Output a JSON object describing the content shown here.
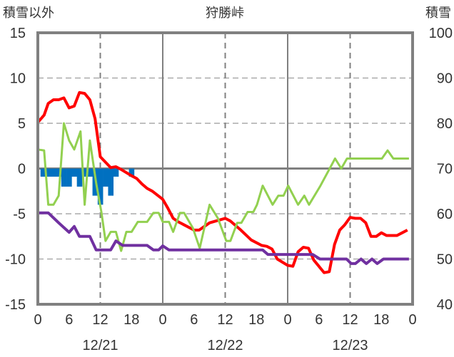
{
  "chart_data": {
    "type": "line",
    "title": "狩勝峠",
    "ylabel_left": "積雪以外",
    "ylabel_right": "積雪",
    "ylim_left": [
      -15,
      15
    ],
    "ylim_right": [
      40,
      100
    ],
    "yticks_left": [
      "15",
      "10",
      "5",
      "0",
      "-5",
      "-10",
      "-15"
    ],
    "yticks_right": [
      "100",
      "90",
      "80",
      "70",
      "60",
      "50",
      "40"
    ],
    "xlim_hours": [
      0,
      72
    ],
    "xticks": [
      "0",
      "6",
      "12",
      "18",
      "0",
      "6",
      "12",
      "18",
      "0",
      "6",
      "12",
      "18",
      "0"
    ],
    "date_labels": [
      "12/21",
      "12/22",
      "12/23"
    ],
    "colors": {
      "red": "#ff0000",
      "green": "#92d050",
      "purple": "#7030a0",
      "blue": "#0070c0",
      "grid": "#808080"
    },
    "series": [
      {
        "name": "red",
        "axis": "left",
        "points": [
          [
            0,
            5.1
          ],
          [
            1.2,
            5.9
          ],
          [
            2,
            7.2
          ],
          [
            3,
            7.6
          ],
          [
            4,
            7.6
          ],
          [
            5,
            7.8
          ],
          [
            6,
            6.7
          ],
          [
            7,
            6.9
          ],
          [
            8,
            8.4
          ],
          [
            9,
            8.3
          ],
          [
            10,
            7.6
          ],
          [
            11,
            5.5
          ],
          [
            12,
            1.3
          ],
          [
            13,
            0.7
          ],
          [
            14,
            0.1
          ],
          [
            15,
            0.2
          ],
          [
            16,
            -0.1
          ],
          [
            18,
            -0.8
          ],
          [
            19,
            -1.1
          ],
          [
            20,
            -1.7
          ],
          [
            21,
            -2.2
          ],
          [
            22,
            -2.5
          ],
          [
            24,
            -3.4
          ],
          [
            25,
            -4.4
          ],
          [
            26,
            -5.5
          ],
          [
            27,
            -5.9
          ],
          [
            28,
            -6.2
          ],
          [
            30,
            -6.8
          ],
          [
            31,
            -6.8
          ],
          [
            33,
            -6.0
          ],
          [
            36,
            -5.5
          ],
          [
            37,
            -5.8
          ],
          [
            39,
            -6.8
          ],
          [
            41,
            -7.9
          ],
          [
            43,
            -8.5
          ],
          [
            44,
            -8.6
          ],
          [
            45,
            -8.9
          ],
          [
            46,
            -10
          ],
          [
            48,
            -10.7
          ],
          [
            49,
            -10.8
          ],
          [
            50,
            -9.2
          ],
          [
            51,
            -8.7
          ],
          [
            52,
            -8.8
          ],
          [
            53,
            -10.1
          ],
          [
            55,
            -11.5
          ],
          [
            56,
            -11.4
          ],
          [
            57,
            -8.4
          ],
          [
            58,
            -6.8
          ],
          [
            59,
            -6.2
          ],
          [
            60,
            -5.4
          ],
          [
            61,
            -5.5
          ],
          [
            62,
            -5.5
          ],
          [
            63,
            -6
          ],
          [
            64,
            -7.5
          ],
          [
            65,
            -7.5
          ],
          [
            66,
            -7.1
          ],
          [
            67,
            -7.4
          ],
          [
            69,
            -7.4
          ],
          [
            70,
            -7.1
          ],
          [
            71,
            -6.8
          ]
        ]
      },
      {
        "name": "green",
        "axis": "left",
        "points": [
          [
            0,
            2.1
          ],
          [
            1.2,
            2
          ],
          [
            2,
            -4
          ],
          [
            3,
            -4
          ],
          [
            4,
            -3
          ],
          [
            5,
            5
          ],
          [
            6,
            3.1
          ],
          [
            7,
            2.1
          ],
          [
            8.2,
            4.1
          ],
          [
            9,
            -4
          ],
          [
            10,
            3.1
          ],
          [
            11.2,
            -1.6
          ],
          [
            12.2,
            -4.8
          ],
          [
            13,
            -8
          ],
          [
            14,
            -7
          ],
          [
            15,
            -7
          ],
          [
            16,
            -9.1
          ],
          [
            17,
            -7
          ],
          [
            18,
            -7
          ],
          [
            19.2,
            -5.9
          ],
          [
            21,
            -5.9
          ],
          [
            22.2,
            -4.9
          ],
          [
            23.2,
            -4.9
          ],
          [
            24,
            -5.9
          ],
          [
            25.2,
            -5.9
          ],
          [
            26,
            -7
          ],
          [
            27.3,
            -4.9
          ],
          [
            28.1,
            -4.9
          ],
          [
            29.8,
            -6.6
          ],
          [
            31.1,
            -8.8
          ],
          [
            33,
            -4
          ],
          [
            34.6,
            -5.5
          ],
          [
            36.2,
            -8
          ],
          [
            37,
            -8
          ],
          [
            38.3,
            -6
          ],
          [
            39.1,
            -6
          ],
          [
            40.3,
            -4.8
          ],
          [
            41.4,
            -4.8
          ],
          [
            42.1,
            -4
          ],
          [
            43.2,
            -1.9
          ],
          [
            45.1,
            -4
          ],
          [
            46.2,
            -3
          ],
          [
            47.2,
            -3
          ],
          [
            48.1,
            -1.9
          ],
          [
            50,
            -4
          ],
          [
            51.2,
            -3
          ],
          [
            52.1,
            -4
          ],
          [
            54.2,
            -2
          ],
          [
            57.1,
            1.1
          ],
          [
            58.3,
            0
          ],
          [
            59.4,
            1.1
          ],
          [
            66.1,
            1.1
          ],
          [
            67.2,
            2
          ],
          [
            68.3,
            1.1
          ],
          [
            71.3,
            1.1
          ]
        ]
      },
      {
        "name": "purple",
        "axis": "right",
        "points": [
          [
            0,
            60.2
          ],
          [
            2,
            60.2
          ],
          [
            4,
            58
          ],
          [
            6,
            55.9
          ],
          [
            7,
            57.2
          ],
          [
            8,
            55
          ],
          [
            10,
            55
          ],
          [
            11.2,
            52
          ],
          [
            14,
            52
          ],
          [
            15,
            54
          ],
          [
            16.3,
            53
          ],
          [
            21,
            53
          ],
          [
            22.2,
            52
          ],
          [
            23.2,
            52
          ],
          [
            24,
            52.9
          ],
          [
            25.2,
            52
          ],
          [
            43.2,
            52
          ],
          [
            44.2,
            51
          ],
          [
            52.8,
            51
          ],
          [
            54.2,
            50
          ],
          [
            59.3,
            50
          ],
          [
            60.2,
            49
          ],
          [
            61,
            49
          ],
          [
            62.1,
            50
          ],
          [
            63.1,
            49
          ],
          [
            64.2,
            50
          ],
          [
            65.2,
            49
          ],
          [
            66.4,
            50
          ],
          [
            71.3,
            50
          ]
        ]
      }
    ],
    "bars": {
      "name": "blue",
      "axis": "left",
      "hours": [
        1,
        2,
        3,
        4,
        5,
        6,
        7,
        8,
        9,
        10,
        11,
        12,
        13,
        14,
        15,
        18
      ],
      "values": [
        -0.9,
        -0.9,
        -0.9,
        -0.9,
        -2,
        -2,
        -0.9,
        -2,
        -0.9,
        -0.9,
        -3,
        -4,
        -2,
        -3,
        -0.9,
        -0.9
      ]
    }
  }
}
